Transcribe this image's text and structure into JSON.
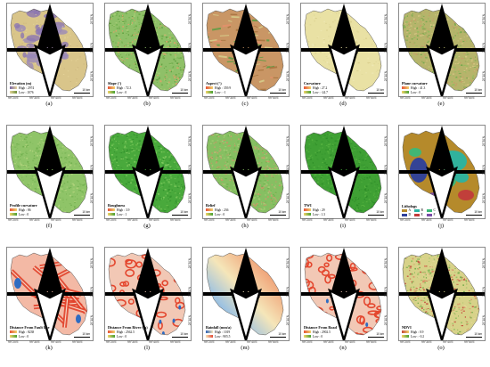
{
  "lat_ticks": [
    "25°30'N",
    "25°20'N",
    "25°10'N"
  ],
  "lon_ticks": [
    "99°20'E",
    "99°30'E",
    "99°40'E",
    "99°50'E"
  ],
  "scale_label": "10 km",
  "panels": [
    {
      "id": "elevation",
      "letter": "(a)",
      "legend_title": "Elevation (m)",
      "high_label": "High : 2974",
      "low_label": "Low : 1076",
      "pattern": "elevation",
      "base": "#d9c58a",
      "colors": [
        "#e9d9a0",
        "#c9b07a",
        "#9a88b8",
        "#8b76b0",
        "#d7ca91"
      ],
      "ramp": [
        "#7d68a8",
        "#e5d59b",
        "#6e8f3a"
      ]
    },
    {
      "id": "slope",
      "letter": "(b)",
      "legend_title": "Slope (°)",
      "high_label": "High : 72.3",
      "low_label": "Low : 0",
      "pattern": "speckle",
      "base": "#8fc068",
      "colors": [
        "#6cad48",
        "#a9cf77",
        "#e3a06a",
        "#5b9b3b"
      ],
      "ramp": [
        "#e5533a",
        "#f3d36b",
        "#46a033"
      ]
    },
    {
      "id": "aspect",
      "letter": "(c)",
      "legend_title": "Aspect (°)",
      "high_label": "High : 359.9",
      "low_label": "Low : -1",
      "pattern": "aspect",
      "base": "#c99665",
      "colors": [
        "#e2906a",
        "#5f9c45",
        "#d6cc8a",
        "#a7743f"
      ],
      "ramp": [
        "#e5533a",
        "#f3d36b",
        "#46a033"
      ]
    },
    {
      "id": "curvature",
      "letter": "(d)",
      "legend_title": "Curvature",
      "high_label": "High : 27.2",
      "low_label": "Low : -24.7",
      "pattern": "flat",
      "base": "#e9e1a4",
      "colors": [
        "#e1d898",
        "#efe8b7",
        "#d9cf8d"
      ],
      "ramp": [
        "#e5533a",
        "#f3d36b",
        "#46a033"
      ]
    },
    {
      "id": "plane-curvature",
      "letter": "(e)",
      "legend_title": "Plane curvature",
      "high_label": "High : 41.3",
      "low_label": "Low : 0",
      "pattern": "speckle",
      "base": "#b6b46b",
      "colors": [
        "#c99a67",
        "#8fbd5d",
        "#d8c784",
        "#6fa84a"
      ],
      "ramp": [
        "#e5533a",
        "#f3d36b",
        "#46a033"
      ]
    },
    {
      "id": "profile-curvature",
      "letter": "(f)",
      "legend_title": "Profile curvature",
      "high_label": "High : 86",
      "low_label": "Low : 0",
      "pattern": "speckle",
      "base": "#8fc468",
      "colors": [
        "#7fb95a",
        "#b2d47d",
        "#6fae4b"
      ],
      "ramp": [
        "#e5533a",
        "#f3d36b",
        "#46a033"
      ]
    },
    {
      "id": "roughness",
      "letter": "(g)",
      "legend_title": "Roughness",
      "high_label": "High : 3.9",
      "low_label": "Low : 1",
      "pattern": "speckle",
      "base": "#49a93c",
      "colors": [
        "#2f8f2a",
        "#6cc050",
        "#3f9d34",
        "#84cc62"
      ],
      "ramp": [
        "#e5533a",
        "#f3d36b",
        "#46a033"
      ]
    },
    {
      "id": "relief",
      "letter": "(h)",
      "legend_title": "Relief",
      "high_label": "High : 236",
      "low_label": "Low : 0",
      "pattern": "speckle",
      "base": "#86bf62",
      "colors": [
        "#d48e66",
        "#6fb04e",
        "#a9cf78",
        "#cf9f72"
      ],
      "ramp": [
        "#e5533a",
        "#f3d36b",
        "#46a033"
      ]
    },
    {
      "id": "twi",
      "letter": "(i)",
      "legend_title": "TWI",
      "high_label": "High : 29",
      "low_label": "Low : 1.3",
      "pattern": "twi",
      "base": "#3fa034",
      "colors": [
        "#2d8c28",
        "#58b442",
        "#3a9a31"
      ],
      "ramp": [
        "#e5533a",
        "#f3d36b",
        "#46a033"
      ]
    },
    {
      "id": "lithology",
      "letter": "(j)",
      "legend_title": "Lithology",
      "lith_labels": [
        "A",
        "B",
        "C",
        "D",
        "E",
        "F"
      ],
      "pattern": "lithology",
      "base": "#b58a2b",
      "colors": [
        "#b58a2b",
        "#2ab4a2",
        "#3cb878",
        "#2d3f9b",
        "#c23b3b",
        "#7b4ca8"
      ]
    },
    {
      "id": "distance-fault",
      "letter": "(k)",
      "legend_title": "Distance From Fault line",
      "high_label": "High : 8238",
      "low_label": "Low : 0",
      "pattern": "fault",
      "base": "#f3b9a5",
      "colors": [
        "#e2432c",
        "#f6d2c0",
        "#2e6cc2"
      ],
      "ramp": [
        "#e5533a",
        "#f3d36b",
        "#46a033"
      ]
    },
    {
      "id": "distance-river",
      "letter": "(l)",
      "legend_title": "Distance From River (m)",
      "high_label": "High : 2562.5",
      "low_label": "Low : 0",
      "pattern": "network",
      "base": "#f2c8b5",
      "colors": [
        "#e4472f",
        "#f7dacb",
        "#2e6cc2"
      ],
      "ramp": [
        "#e5533a",
        "#f3d36b",
        "#46a033"
      ]
    },
    {
      "id": "rainfall",
      "letter": "(m)",
      "legend_title": "Rainfall (mm/a)",
      "high_label": "High : 1019",
      "low_label": "Low : 905.5",
      "pattern": "rainfall",
      "base": "#e8ddb0",
      "colors": [
        "#e24a35",
        "#f0a277",
        "#f5e6b9",
        "#9fc3e0",
        "#2e63b7"
      ],
      "ramp": [
        "#2e63b7",
        "#f5e6b9",
        "#e24a35"
      ]
    },
    {
      "id": "distance-road",
      "letter": "(n)",
      "legend_title": "Distance From Road",
      "high_label": "High : 2902.5",
      "low_label": "Low : 0",
      "pattern": "network",
      "base": "#f2c8b5",
      "colors": [
        "#e4472f",
        "#f7dacb",
        "#2e6cc2"
      ],
      "ramp": [
        "#e5533a",
        "#f3d36b",
        "#46a033"
      ]
    },
    {
      "id": "ndvi",
      "letter": "(o)",
      "legend_title": "NDVI",
      "high_label": "High : 0.9",
      "low_label": "Low : -0.2",
      "pattern": "speckle",
      "base": "#d7d289",
      "colors": [
        "#c4463a",
        "#8fbf60",
        "#e8d79b",
        "#6aa945",
        "#d98a63"
      ],
      "ramp": [
        "#c4463a",
        "#f3d36b",
        "#46a033"
      ]
    }
  ]
}
